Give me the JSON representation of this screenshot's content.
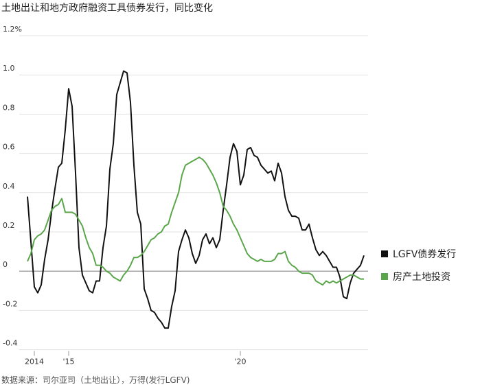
{
  "chart_data": {
    "type": "line",
    "title": "土地出让和地方政府融资工具债券发行，同比变化",
    "source": "数据来源：司尔亚司（土地出让），万得(发行LGFV)",
    "x": [
      2013.8,
      2013.9,
      2014,
      2014.1,
      2014.2,
      2014.3,
      2014.4,
      2014.5,
      2014.6,
      2014.7,
      2014.8,
      2014.9,
      2015,
      2015.1,
      2015.2,
      2015.3,
      2015.4,
      2015.5,
      2015.6,
      2015.7,
      2015.8,
      2015.9,
      2016,
      2016.1,
      2016.2,
      2016.3,
      2016.4,
      2016.5,
      2016.6,
      2016.7,
      2016.8,
      2016.9,
      2017,
      2017.1,
      2017.2,
      2017.3,
      2017.4,
      2017.5,
      2017.6,
      2017.7,
      2017.8,
      2017.9,
      2018,
      2018.1,
      2018.2,
      2018.3,
      2018.4,
      2018.5,
      2018.6,
      2018.7,
      2018.8,
      2018.9,
      2019,
      2019.1,
      2019.2,
      2019.3,
      2019.4,
      2019.5,
      2019.6,
      2019.7,
      2019.8,
      2019.9,
      2020,
      2020.1,
      2020.2,
      2020.3,
      2020.4,
      2020.5,
      2020.6,
      2020.7,
      2020.8,
      2020.9,
      2021,
      2021.1,
      2021.2,
      2021.3,
      2021.4,
      2021.5,
      2021.6,
      2021.7,
      2021.8,
      2021.9,
      2022,
      2022.1,
      2022.2,
      2022.3,
      2022.4,
      2022.5,
      2022.6,
      2022.7,
      2022.8,
      2022.9,
      2023,
      2023.1,
      2023.2,
      2023.3,
      2023.4,
      2023.5,
      2023.6
    ],
    "series": [
      {
        "name": "LGFV债券发行",
        "color": "#111111",
        "values": [
          0.38,
          0.15,
          -0.08,
          -0.11,
          -0.07,
          0.06,
          0.16,
          0.3,
          0.42,
          0.53,
          0.55,
          0.72,
          0.93,
          0.84,
          0.5,
          0.12,
          -0.02,
          -0.06,
          -0.1,
          -0.11,
          -0.05,
          -0.05,
          0.12,
          0.23,
          0.52,
          0.65,
          0.9,
          0.96,
          1.02,
          1.01,
          0.86,
          0.54,
          0.3,
          0.24,
          -0.09,
          -0.14,
          -0.2,
          -0.21,
          -0.24,
          -0.26,
          -0.29,
          -0.29,
          -0.18,
          -0.1,
          0.1,
          0.16,
          0.21,
          0.17,
          0.09,
          0.04,
          0.08,
          0.16,
          0.19,
          0.14,
          0.17,
          0.12,
          0.16,
          0.31,
          0.44,
          0.58,
          0.65,
          0.61,
          0.44,
          0.49,
          0.62,
          0.63,
          0.59,
          0.58,
          0.54,
          0.52,
          0.5,
          0.51,
          0.46,
          0.55,
          0.5,
          0.38,
          0.31,
          0.28,
          0.28,
          0.27,
          0.21,
          0.21,
          0.24,
          0.17,
          0.11,
          0.08,
          0.1,
          0.08,
          0.05,
          0.02,
          0.02,
          -0.03,
          -0.13,
          -0.14,
          -0.06,
          -0.01,
          0.01,
          0.03,
          0.08
        ]
      },
      {
        "name": "房产土地投资",
        "color": "#5aa64a",
        "values": [
          0.05,
          0.09,
          0.16,
          0.18,
          0.19,
          0.21,
          0.26,
          0.31,
          0.33,
          0.34,
          0.37,
          0.3,
          0.3,
          0.3,
          0.29,
          0.26,
          0.23,
          0.17,
          0.12,
          0.09,
          0.03,
          0.03,
          0.02,
          0,
          -0.01,
          -0.03,
          -0.04,
          -0.05,
          -0.02,
          0,
          0.03,
          0.07,
          0.07,
          0.08,
          0.1,
          0.13,
          0.16,
          0.17,
          0.19,
          0.2,
          0.23,
          0.24,
          0.3,
          0.35,
          0.4,
          0.49,
          0.54,
          0.55,
          0.56,
          0.57,
          0.58,
          0.57,
          0.55,
          0.52,
          0.49,
          0.45,
          0.4,
          0.33,
          0.31,
          0.28,
          0.24,
          0.21,
          0.17,
          0.13,
          0.09,
          0.07,
          0.06,
          0.05,
          0.06,
          0.05,
          0.05,
          0.05,
          0.06,
          0.09,
          0.09,
          0.1,
          0.05,
          0.03,
          0.02,
          0,
          -0.01,
          -0.01,
          -0.01,
          -0.02,
          -0.05,
          -0.06,
          -0.07,
          -0.05,
          -0.06,
          -0.05,
          -0.06,
          -0.05,
          -0.04,
          -0.03,
          -0.02,
          -0.02,
          -0.03,
          -0.04,
          -0.04
        ]
      }
    ],
    "xlim": [
      2013.8,
      2023.6
    ],
    "xticks": [
      {
        "value": 2014,
        "label": "2014"
      },
      {
        "value": 2015,
        "label": "'15"
      },
      {
        "value": 2020,
        "label": "'20"
      }
    ],
    "ylim": [
      -0.4,
      1.2
    ],
    "yticks": [
      {
        "value": 1.2,
        "label": "1.2%"
      },
      {
        "value": 1,
        "label": "1.0"
      },
      0.8,
      0.6,
      0.4,
      0.2,
      0,
      -0.2,
      -0.4
    ],
    "grid": true
  }
}
